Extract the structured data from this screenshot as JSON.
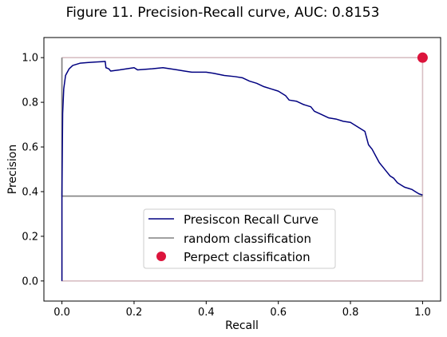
{
  "chart_data": {
    "type": "line",
    "title": "Figure 11. Precision-Recall curve, AUC: 0.8153",
    "xlabel": "Recall",
    "ylabel": "Precision",
    "xlim": [
      -0.05,
      1.05
    ],
    "ylim": [
      -0.09,
      1.09
    ],
    "xticks": [
      0.0,
      0.2,
      0.4,
      0.6,
      0.8,
      1.0
    ],
    "xtick_labels": [
      "0.0",
      "0.2",
      "0.4",
      "0.6",
      "0.8",
      "1.0"
    ],
    "yticks": [
      0.0,
      0.2,
      0.4,
      0.6,
      0.8,
      1.0
    ],
    "ytick_labels": [
      "0.0",
      "0.2",
      "0.4",
      "0.6",
      "0.8",
      "1.0"
    ],
    "grid": false,
    "legend_position": "lower center",
    "colors": {
      "pr_curve": "#000080",
      "random": "#808080",
      "perfect": "#dc143c",
      "ideal_box": "#d8bfc4"
    },
    "series": [
      {
        "name": "Presiscon Recall Curve",
        "kind": "line",
        "x": [
          0.0,
          0.0,
          0.002,
          0.005,
          0.01,
          0.02,
          0.03,
          0.05,
          0.07,
          0.09,
          0.11,
          0.12,
          0.122,
          0.13,
          0.135,
          0.16,
          0.2,
          0.21,
          0.25,
          0.28,
          0.3,
          0.32,
          0.34,
          0.36,
          0.38,
          0.4,
          0.42,
          0.45,
          0.48,
          0.5,
          0.52,
          0.54,
          0.56,
          0.58,
          0.6,
          0.62,
          0.63,
          0.65,
          0.67,
          0.69,
          0.7,
          0.72,
          0.74,
          0.76,
          0.78,
          0.8,
          0.82,
          0.84,
          0.85,
          0.86,
          0.87,
          0.88,
          0.89,
          0.9,
          0.91,
          0.92,
          0.93,
          0.94,
          0.95,
          0.96,
          0.97,
          0.98,
          0.99,
          1.0
        ],
        "y": [
          0.0,
          0.38,
          0.75,
          0.86,
          0.92,
          0.95,
          0.965,
          0.975,
          0.978,
          0.98,
          0.982,
          0.983,
          0.955,
          0.95,
          0.94,
          0.945,
          0.955,
          0.945,
          0.95,
          0.955,
          0.95,
          0.945,
          0.94,
          0.935,
          0.935,
          0.935,
          0.93,
          0.92,
          0.915,
          0.91,
          0.895,
          0.885,
          0.87,
          0.86,
          0.85,
          0.83,
          0.81,
          0.805,
          0.79,
          0.78,
          0.76,
          0.745,
          0.73,
          0.725,
          0.715,
          0.71,
          0.69,
          0.67,
          0.61,
          0.59,
          0.56,
          0.53,
          0.51,
          0.49,
          0.47,
          0.46,
          0.44,
          0.43,
          0.42,
          0.415,
          0.41,
          0.4,
          0.39,
          0.385
        ]
      },
      {
        "name": "random classification",
        "kind": "line",
        "x": [
          0.0,
          0.0,
          1.0
        ],
        "y": [
          1.0,
          0.38,
          0.38
        ]
      },
      {
        "name": "Perpect classification",
        "kind": "scatter",
        "x": [
          1.0
        ],
        "y": [
          1.0
        ]
      },
      {
        "name": "",
        "kind": "box",
        "x": [
          0.0,
          1.0,
          1.0,
          0.0,
          0.0
        ],
        "y": [
          1.0,
          1.0,
          0.0,
          0.0,
          1.0
        ]
      }
    ]
  }
}
